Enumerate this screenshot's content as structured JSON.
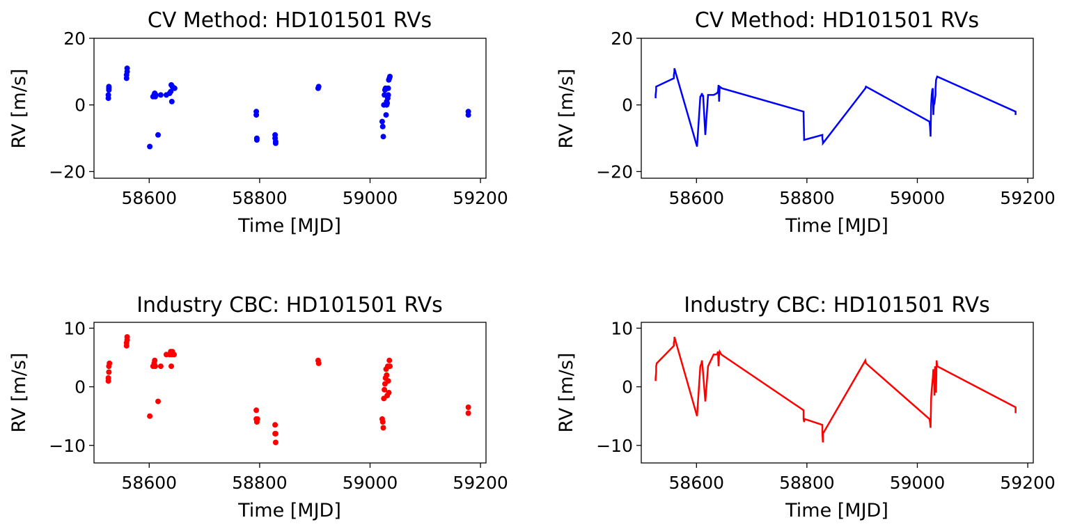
{
  "chart_data": [
    {
      "type": "scatter",
      "title": "CV Method: HD101501 RVs",
      "xlabel": "Time [MJD]",
      "ylabel": "RV [m/s]",
      "xlim": [
        58500,
        59210
      ],
      "ylim": [
        -22,
        20
      ],
      "xticks": [
        58600,
        58800,
        59000,
        59200
      ],
      "xtick_labels": [
        "58600",
        "58800",
        "59000",
        "59200"
      ],
      "yticks": [
        -20,
        0,
        20
      ],
      "ytick_labels": [
        "−20",
        "0",
        "20"
      ],
      "color": "#0000ff",
      "grid": false,
      "series": [
        {
          "x": [
            58526,
            58526,
            58527,
            58527,
            58527,
            58559,
            58559,
            58560,
            58560,
            58601,
            58607,
            58609,
            58610,
            58611,
            58612,
            58616,
            58621,
            58631,
            58637,
            58639,
            58640,
            58641,
            58642,
            58646,
            58794,
            58794,
            58795,
            58795,
            58828,
            58828,
            58829,
            58829,
            58906,
            58907,
            59022,
            59023,
            59024,
            59025,
            59026,
            59027,
            59028,
            59029,
            59030,
            59030,
            59031,
            59032,
            59033,
            59033,
            59034,
            59035,
            59036,
            59178,
            59178
          ],
          "y": [
            2,
            3,
            4.5,
            5,
            5.5,
            8,
            9,
            10,
            11,
            -12.5,
            2.5,
            3,
            3.5,
            2.5,
            3,
            -9,
            3,
            3,
            3.5,
            4,
            6,
            1,
            5.5,
            5,
            -2,
            -3,
            -10,
            -10.5,
            -9,
            -10,
            -11,
            -11.5,
            5,
            5.5,
            -5,
            -6.5,
            -9.5,
            0,
            3,
            4.5,
            5,
            -3,
            1,
            0,
            0.5,
            2,
            3,
            5,
            7.5,
            8,
            8.5,
            -2,
            -3
          ]
        }
      ]
    },
    {
      "type": "line",
      "title": "CV Method: HD101501 RVs",
      "xlabel": "Time [MJD]",
      "ylabel": "RV [m/s]",
      "xlim": [
        58500,
        59210
      ],
      "ylim": [
        -22,
        20
      ],
      "xticks": [
        58600,
        58800,
        59000,
        59200
      ],
      "xtick_labels": [
        "58600",
        "58800",
        "59000",
        "59200"
      ],
      "yticks": [
        -20,
        0,
        20
      ],
      "ytick_labels": [
        "−20",
        "0",
        "20"
      ],
      "color": "#0000ff",
      "grid": false,
      "series": [
        {
          "x": [
            58526,
            58526,
            58527,
            58527,
            58527,
            58559,
            58559,
            58560,
            58560,
            58601,
            58607,
            58609,
            58610,
            58611,
            58612,
            58616,
            58621,
            58631,
            58637,
            58639,
            58640,
            58641,
            58642,
            58646,
            58794,
            58794,
            58795,
            58795,
            58828,
            58828,
            58829,
            58829,
            58906,
            58907,
            59022,
            59023,
            59024,
            59025,
            59026,
            59027,
            59028,
            59029,
            59030,
            59030,
            59031,
            59032,
            59033,
            59033,
            59034,
            59035,
            59036,
            59178,
            59178
          ],
          "y": [
            2,
            3,
            4.5,
            5,
            5.5,
            8,
            9,
            10,
            11,
            -12.5,
            2.5,
            3,
            3.5,
            2.5,
            3,
            -9,
            3,
            3,
            3.5,
            4,
            6,
            1,
            5.5,
            5,
            -2,
            -3,
            -10,
            -10.5,
            -9,
            -10,
            -11,
            -11.5,
            5,
            5.5,
            -5,
            -6.5,
            -9.5,
            0,
            3,
            4.5,
            5,
            -3,
            1,
            0,
            0.5,
            2,
            3,
            5,
            7.5,
            8,
            8.5,
            -2,
            -3
          ]
        }
      ]
    },
    {
      "type": "scatter",
      "title": "Industry CBC: HD101501 RVs",
      "xlabel": "Time [MJD]",
      "ylabel": "RV [m/s]",
      "xlim": [
        58500,
        59210
      ],
      "ylim": [
        -13,
        11
      ],
      "xticks": [
        58600,
        58800,
        59000,
        59200
      ],
      "xtick_labels": [
        "58600",
        "58800",
        "59000",
        "59200"
      ],
      "yticks": [
        -10,
        0,
        10
      ],
      "ytick_labels": [
        "−10",
        "0",
        "10"
      ],
      "color": "#ff0000",
      "grid": false,
      "series": [
        {
          "x": [
            58526,
            58526,
            58527,
            58527,
            58528,
            58559,
            58559,
            58560,
            58560,
            58601,
            58607,
            58609,
            58610,
            58611,
            58616,
            58621,
            58631,
            58637,
            58639,
            58640,
            58641,
            58642,
            58645,
            58794,
            58794,
            58795,
            58796,
            58828,
            58828,
            58829,
            58829,
            58906,
            58907,
            59022,
            59023,
            59024,
            59025,
            59026,
            59027,
            59028,
            59029,
            59030,
            59031,
            59032,
            59033,
            59034,
            59035,
            59036,
            59178,
            59178
          ],
          "y": [
            1,
            1.5,
            2.5,
            3.5,
            4,
            7,
            7.5,
            8,
            8.5,
            -5,
            3.5,
            4,
            4.5,
            3.5,
            -2.5,
            3.5,
            5.5,
            5.5,
            6,
            3.5,
            5.5,
            6,
            5.5,
            -4,
            -5.5,
            -6,
            -5.5,
            -6.5,
            -8,
            -9.5,
            -8,
            4.5,
            4,
            -5.5,
            -6,
            -7,
            -2,
            -0.5,
            0.5,
            1.5,
            3,
            2,
            -1.5,
            3.5,
            1,
            -1,
            4.5,
            3.5,
            -3.5,
            -4.5
          ]
        }
      ]
    },
    {
      "type": "line",
      "title": "Industry CBC: HD101501 RVs",
      "xlabel": "Time [MJD]",
      "ylabel": "RV [m/s]",
      "xlim": [
        58500,
        59210
      ],
      "ylim": [
        -13,
        11
      ],
      "xticks": [
        58600,
        58800,
        59000,
        59200
      ],
      "xtick_labels": [
        "58600",
        "58800",
        "59000",
        "59200"
      ],
      "yticks": [
        -10,
        0,
        10
      ],
      "ytick_labels": [
        "−10",
        "0",
        "10"
      ],
      "color": "#ff0000",
      "grid": false,
      "series": [
        {
          "x": [
            58526,
            58526,
            58527,
            58527,
            58528,
            58559,
            58559,
            58560,
            58560,
            58601,
            58607,
            58609,
            58610,
            58611,
            58616,
            58621,
            58631,
            58637,
            58639,
            58640,
            58641,
            58642,
            58645,
            58794,
            58794,
            58795,
            58796,
            58828,
            58828,
            58829,
            58829,
            58906,
            58907,
            59022,
            59023,
            59024,
            59025,
            59026,
            59027,
            59028,
            59029,
            59030,
            59031,
            59032,
            59033,
            59034,
            59035,
            59036,
            59178,
            59178
          ],
          "y": [
            1,
            1.5,
            2.5,
            3.5,
            4,
            7,
            7.5,
            8,
            8.5,
            -5,
            3.5,
            4,
            4.5,
            3.5,
            -2.5,
            3.5,
            5.5,
            5.5,
            6,
            3.5,
            5.5,
            6,
            5.5,
            -4,
            -5.5,
            -6,
            -5.5,
            -6.5,
            -8,
            -9.5,
            -8,
            4.5,
            4,
            -5.5,
            -6,
            -7,
            -2,
            -0.5,
            0.5,
            1.5,
            3,
            2,
            -1.5,
            3.5,
            1,
            -1,
            4.5,
            3.5,
            -3.5,
            -4.5
          ]
        }
      ]
    }
  ]
}
